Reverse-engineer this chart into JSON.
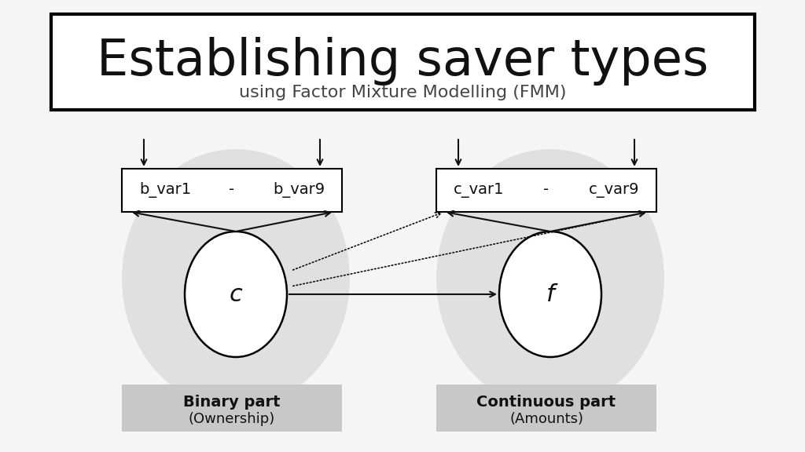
{
  "title": "Establishing saver types",
  "subtitle": "using Factor Mixture Modelling (FMM)",
  "bg_color": "#f5f5f5",
  "title_box_color": "#ffffff",
  "title_box_edge": "#000000",
  "ellipse_bg_color": "#e0e0e0",
  "var_box_color": "#ffffff",
  "var_box_edge": "#000000",
  "circle_color": "#ffffff",
  "circle_edge": "#000000",
  "label_binary": "Binary part",
  "label_binary_sub": "(Ownership)",
  "label_continuous": "Continuous part",
  "label_continuous_sub": "(Amounts)",
  "label_box_color": "#c8c8c8",
  "node_c_label": "c",
  "node_f_label": "f",
  "bvar_left": "b_var1",
  "bvar_sep": "-",
  "bvar_right": "b_var9",
  "cvar_left": "c_var1",
  "cvar_sep": "-",
  "cvar_right": "c_var9",
  "title_fontsize": 46,
  "subtitle_fontsize": 16,
  "var_fontsize": 14,
  "circle_label_fontsize": 22,
  "label_fontsize": 14,
  "label_sub_fontsize": 13
}
